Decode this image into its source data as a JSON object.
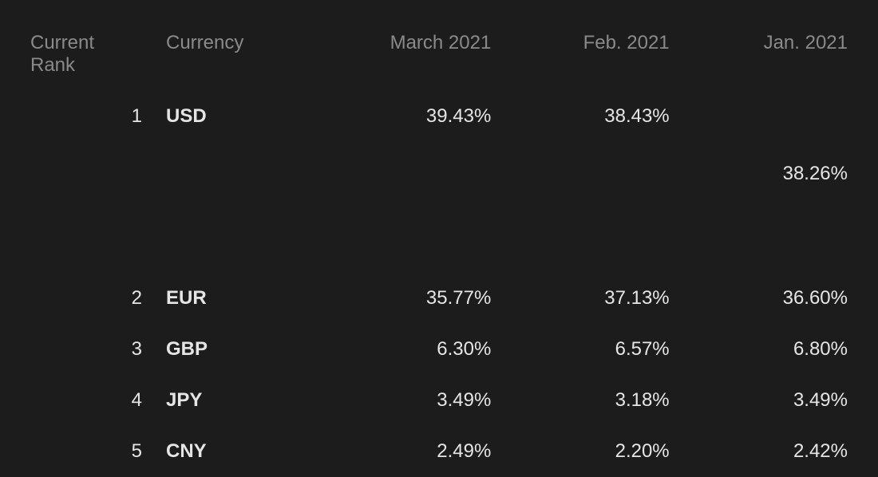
{
  "table": {
    "background_color": "#1c1c1c",
    "header_color": "#8a8a8a",
    "cell_color": "#e5e5e5",
    "font_size": 24,
    "columns": {
      "rank": "Current Rank",
      "currency": "Currency",
      "mar": "March 2021",
      "feb": "Feb. 2021",
      "jan": "Jan. 2021"
    },
    "rows": [
      {
        "rank": "1",
        "currency": "USD",
        "mar": "39.43%",
        "feb": "38.43%",
        "jan": "38.26%"
      },
      {
        "rank": "2",
        "currency": "EUR",
        "mar": "35.77%",
        "feb": "37.13%",
        "jan": "36.60%"
      },
      {
        "rank": "3",
        "currency": "GBP",
        "mar": "6.30%",
        "feb": "6.57%",
        "jan": "6.80%"
      },
      {
        "rank": "4",
        "currency": "JPY",
        "mar": "3.49%",
        "feb": "3.18%",
        "jan": "3.49%"
      },
      {
        "rank": "5",
        "currency": "CNY",
        "mar": "2.49%",
        "feb": "2.20%",
        "jan": "2.42%"
      }
    ]
  }
}
